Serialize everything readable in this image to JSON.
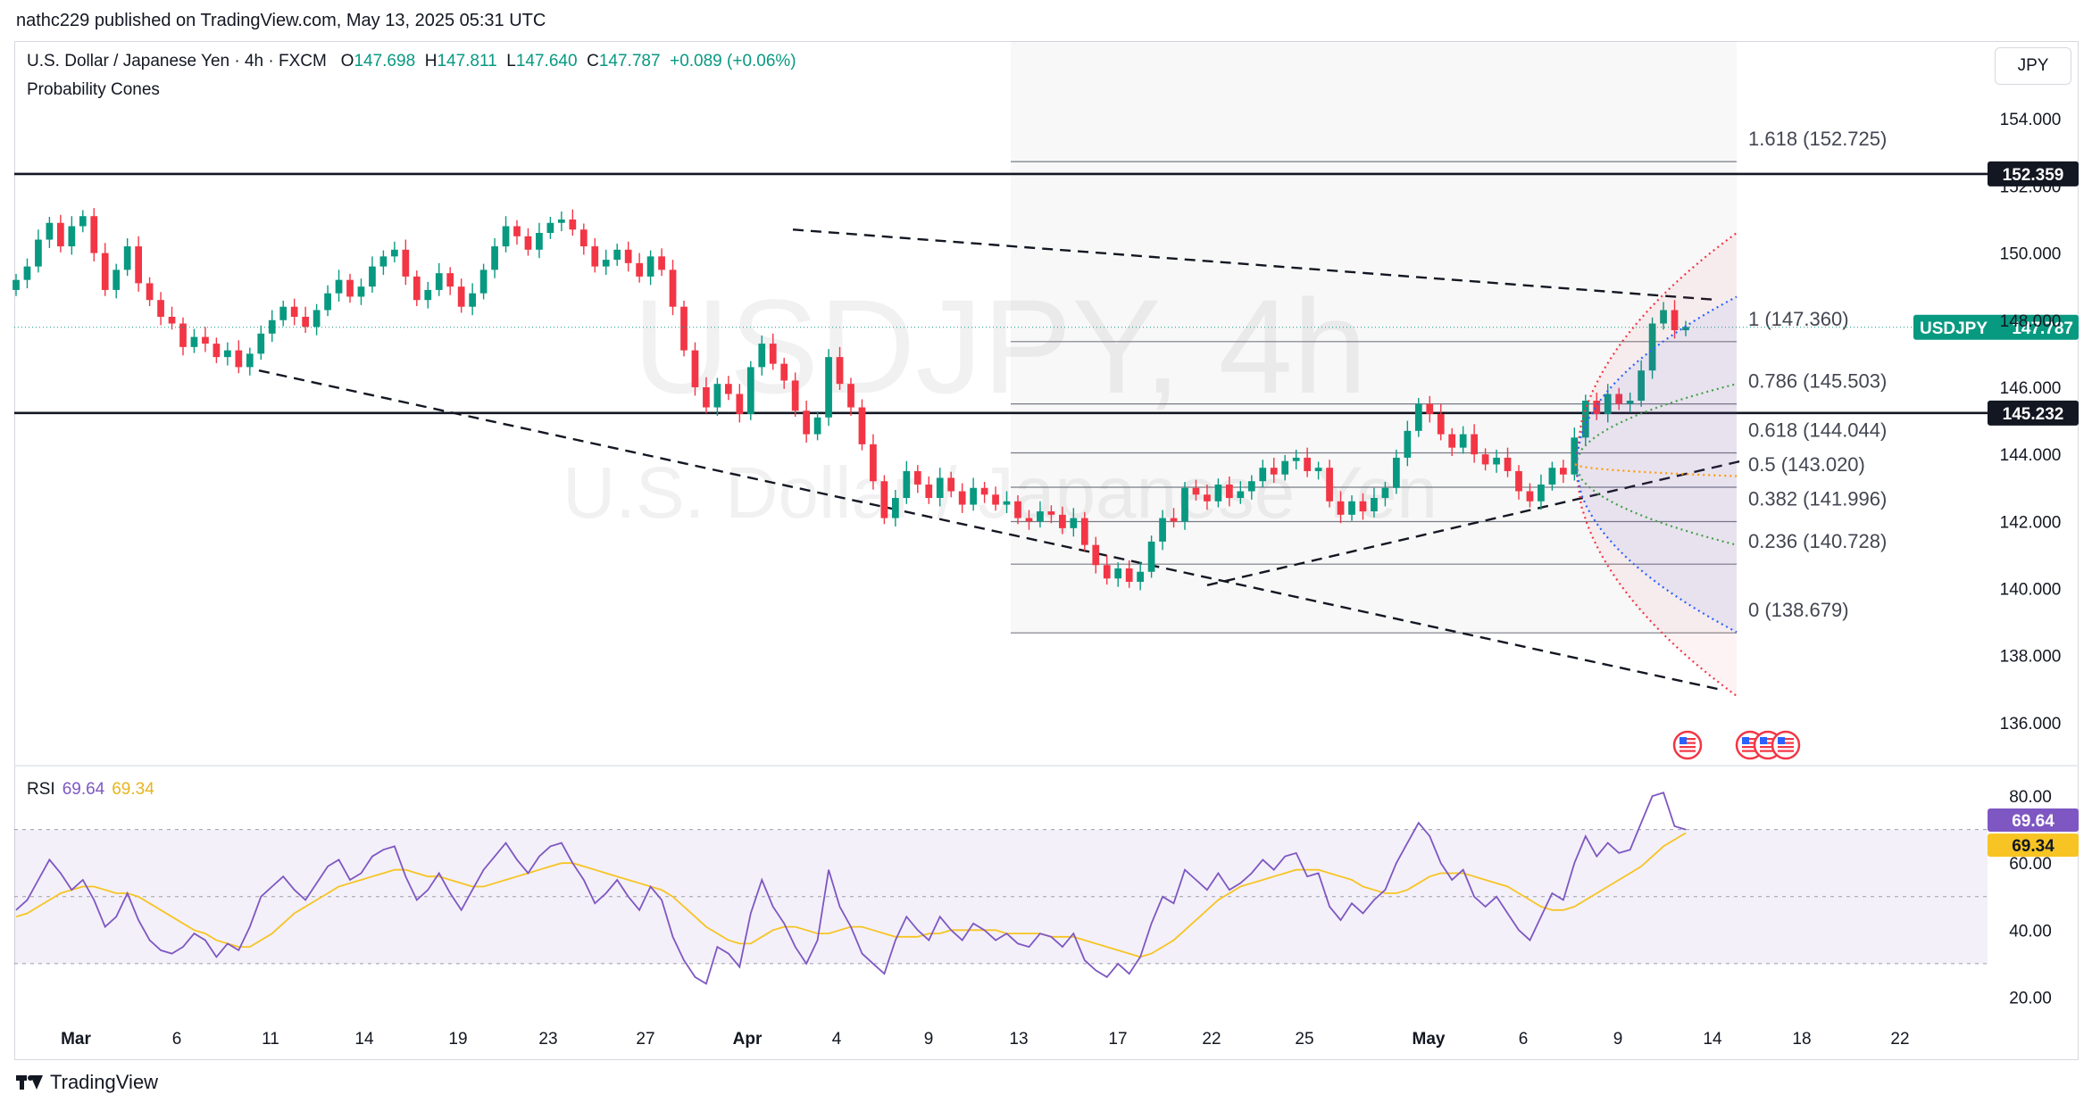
{
  "header": {
    "published": "nathc229 published on TradingView.com, May 13, 2025 05:31 UTC"
  },
  "legend": {
    "symbol": "U.S. Dollar / Japanese Yen · 4h · FXCM",
    "open_label": "O",
    "open": "147.698",
    "high_label": "H",
    "high": "147.811",
    "low_label": "L",
    "low": "147.640",
    "close_label": "C",
    "close": "147.787",
    "change": "+0.089 (+0.06%)",
    "indicator": "Probability Cones"
  },
  "currency": "JPY",
  "watermark": {
    "line1": "USDJPY, 4h",
    "line2": "U.S. Dollar / Japanese Yen"
  },
  "footer": {
    "brand": "TradingView"
  },
  "rsi_legend": {
    "name": "RSI",
    "value": "69.64",
    "ma_value": "69.34"
  },
  "colors": {
    "up": "#089981",
    "down": "#f23645",
    "rsi": "#7e57c2",
    "rsi_ma": "#f7c423",
    "grid": "#f0f3fa",
    "cone_upper": "#2962ff",
    "cone_outer": "#f23645",
    "cone_mid": "#43a047",
    "cone_center": "#ff9800"
  },
  "chart_data": {
    "type": "candlestick",
    "price_axis": {
      "range": [
        135.2,
        156.0
      ],
      "ticks": [
        "154.000",
        "152.000",
        "150.000",
        "148.000",
        "146.000",
        "144.000",
        "142.000",
        "140.000",
        "138.000",
        "136.000"
      ],
      "tick_values": [
        154,
        152,
        150,
        148,
        146,
        144,
        142,
        140,
        138,
        136
      ]
    },
    "time_axis": {
      "labels": [
        "Mar",
        "6",
        "11",
        "14",
        "19",
        "23",
        "27",
        "Apr",
        "4",
        "9",
        "13",
        "17",
        "22",
        "25",
        "May",
        "6",
        "9",
        "14",
        "18",
        "22"
      ],
      "bold": [
        "Mar",
        "Apr",
        "May"
      ]
    },
    "horizontal_lines": [
      {
        "value": 152.359,
        "label": "152.359"
      },
      {
        "value": 145.232,
        "label": "145.232"
      }
    ],
    "last_price": {
      "symbol": "USDJPY",
      "value": 147.787,
      "label": "147.787"
    },
    "fib_levels": [
      {
        "ratio": "1.618",
        "value": 152.725,
        "label": "1.618 (152.725)"
      },
      {
        "ratio": "1",
        "value": 147.36,
        "label": "1 (147.360)"
      },
      {
        "ratio": "0.786",
        "value": 145.503,
        "label": "0.786 (145.503)"
      },
      {
        "ratio": "0.618",
        "value": 144.044,
        "label": "0.618 (144.044)"
      },
      {
        "ratio": "0.5",
        "value": 143.02,
        "label": "0.5 (143.020)"
      },
      {
        "ratio": "0.382",
        "value": 141.996,
        "label": "0.382 (141.996)"
      },
      {
        "ratio": "0.236",
        "value": 140.728,
        "label": "0.236 (140.728)"
      },
      {
        "ratio": "0",
        "value": 138.679,
        "label": "0 (138.679)"
      }
    ],
    "closes": [
      149.2,
      149.6,
      150.4,
      150.9,
      150.2,
      150.8,
      151.1,
      150.0,
      148.9,
      149.5,
      150.2,
      149.1,
      148.6,
      148.1,
      147.9,
      147.2,
      147.5,
      147.3,
      146.9,
      147.1,
      146.6,
      147.0,
      147.6,
      148.0,
      148.4,
      148.1,
      147.8,
      148.3,
      148.8,
      149.2,
      148.7,
      149.0,
      149.6,
      149.9,
      150.1,
      149.3,
      148.6,
      148.9,
      149.4,
      149.0,
      148.4,
      148.8,
      149.5,
      150.2,
      150.8,
      150.5,
      150.1,
      150.6,
      150.9,
      151.0,
      150.7,
      150.2,
      149.6,
      149.8,
      150.1,
      149.7,
      149.3,
      149.9,
      149.5,
      148.4,
      147.1,
      146.0,
      145.4,
      146.1,
      145.8,
      145.2,
      146.6,
      147.3,
      146.7,
      146.2,
      145.3,
      144.6,
      145.1,
      146.9,
      146.1,
      145.4,
      144.3,
      143.2,
      142.1,
      142.7,
      143.5,
      143.1,
      142.7,
      143.3,
      142.9,
      142.5,
      143.0,
      142.8,
      142.5,
      142.6,
      142.1,
      142.0,
      142.3,
      142.2,
      141.8,
      142.1,
      141.3,
      140.7,
      140.3,
      140.6,
      140.2,
      140.5,
      141.4,
      142.1,
      142.0,
      143.0,
      142.8,
      142.6,
      143.1,
      142.7,
      142.9,
      143.2,
      143.6,
      143.4,
      143.8,
      143.9,
      143.5,
      143.6,
      142.6,
      142.2,
      142.6,
      142.3,
      142.7,
      143.0,
      143.9,
      144.7,
      145.5,
      145.2,
      144.6,
      144.2,
      144.6,
      144.0,
      143.7,
      143.9,
      143.5,
      142.9,
      142.6,
      143.1,
      143.6,
      143.4,
      144.5,
      145.6,
      145.2,
      145.8,
      145.5,
      145.6,
      146.5,
      147.9,
      148.3,
      147.7,
      147.8
    ],
    "rsi_axis": {
      "range": [
        14,
        88
      ],
      "ticks": [
        "80.00",
        "60.00",
        "40.00",
        "20.00"
      ],
      "tick_values": [
        80,
        60,
        40,
        20
      ],
      "band": [
        30,
        70
      ]
    },
    "rsi": [
      46,
      49,
      55,
      61,
      57,
      52,
      55,
      49,
      41,
      44,
      51,
      43,
      37,
      34,
      33,
      35,
      39,
      37,
      32,
      36,
      34,
      41,
      50,
      53,
      56,
      52,
      49,
      54,
      59,
      61,
      55,
      57,
      62,
      64,
      65,
      56,
      49,
      52,
      57,
      51,
      46,
      52,
      58,
      62,
      66,
      61,
      57,
      62,
      65,
      66,
      60,
      55,
      48,
      51,
      55,
      50,
      46,
      53,
      49,
      38,
      31,
      26,
      24,
      35,
      33,
      29,
      45,
      55,
      47,
      42,
      35,
      30,
      37,
      58,
      47,
      41,
      33,
      30,
      27,
      37,
      44,
      40,
      37,
      44,
      40,
      37,
      42,
      40,
      37,
      39,
      36,
      35,
      39,
      38,
      35,
      39,
      31,
      28,
      26,
      30,
      27,
      32,
      42,
      50,
      48,
      58,
      55,
      52,
      57,
      52,
      54,
      57,
      61,
      58,
      62,
      63,
      56,
      57,
      47,
      43,
      48,
      45,
      49,
      52,
      60,
      66,
      72,
      68,
      60,
      55,
      58,
      50,
      47,
      50,
      45,
      40,
      37,
      44,
      51,
      49,
      60,
      68,
      62,
      66,
      63,
      64,
      72,
      80,
      81,
      71,
      70
    ],
    "rsi_ma": [
      44,
      45,
      47,
      49,
      51,
      52,
      53,
      53,
      52,
      51,
      51,
      50,
      48,
      46,
      44,
      42,
      40,
      39,
      37,
      36,
      35,
      35,
      37,
      39,
      42,
      45,
      47,
      49,
      51,
      53,
      54,
      55,
      56,
      57,
      58,
      58,
      57,
      56,
      56,
      55,
      54,
      53,
      53,
      54,
      55,
      56,
      57,
      58,
      59,
      60,
      60,
      59,
      58,
      57,
      56,
      55,
      54,
      53,
      52,
      50,
      47,
      44,
      41,
      39,
      37,
      36,
      36,
      38,
      40,
      41,
      41,
      40,
      39,
      39,
      40,
      41,
      41,
      40,
      39,
      38,
      38,
      38,
      39,
      39,
      40,
      40,
      40,
      40,
      40,
      39,
      39,
      39,
      39,
      38,
      38,
      38,
      37,
      36,
      35,
      34,
      33,
      32,
      33,
      35,
      37,
      40,
      43,
      46,
      49,
      51,
      53,
      54,
      55,
      56,
      57,
      58,
      58,
      58,
      57,
      56,
      55,
      53,
      52,
      51,
      51,
      52,
      54,
      56,
      57,
      57,
      57,
      56,
      55,
      54,
      53,
      51,
      49,
      47,
      46,
      46,
      47,
      49,
      51,
      53,
      55,
      57,
      59,
      62,
      65,
      67,
      69
    ]
  }
}
